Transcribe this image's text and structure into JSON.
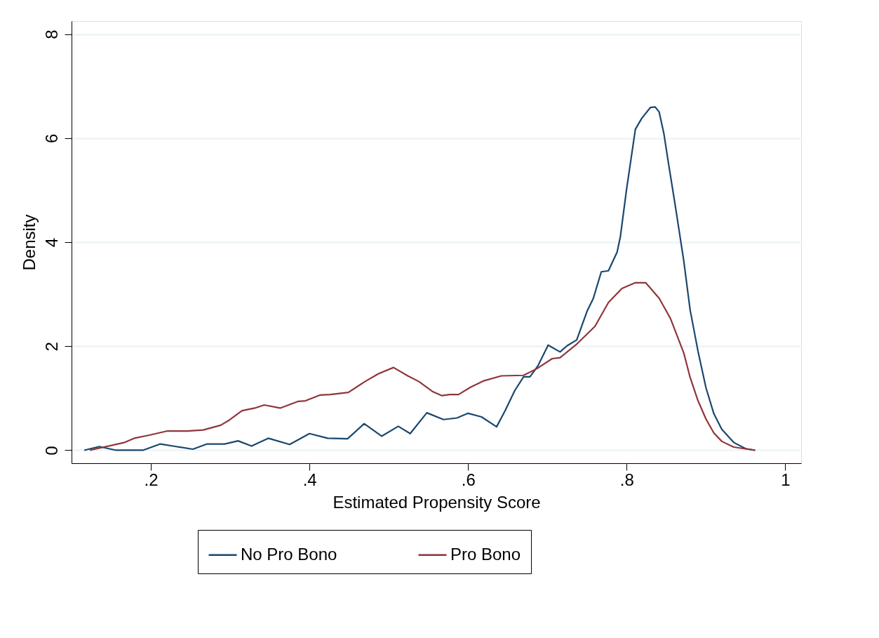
{
  "chart_data": {
    "type": "line",
    "xlabel": "Estimated Propensity Score",
    "ylabel": "Density",
    "xlim": [
      0.1,
      1.02
    ],
    "ylim": [
      -0.25,
      8.25
    ],
    "xticks": [
      {
        "value": 0.2,
        "label": ".2"
      },
      {
        "value": 0.4,
        "label": ".4"
      },
      {
        "value": 0.6,
        "label": ".6"
      },
      {
        "value": 0.8,
        "label": ".8"
      },
      1
    ],
    "yticks": [
      0,
      2,
      4,
      6,
      8
    ],
    "grid": "y",
    "legend": "bottom",
    "line_style": "solid",
    "marker": "none",
    "series": [
      {
        "name": "No Pro Bono",
        "color": "#1a476f",
        "x": [
          0.116,
          0.135,
          0.156,
          0.19,
          0.212,
          0.232,
          0.253,
          0.271,
          0.293,
          0.31,
          0.327,
          0.348,
          0.375,
          0.4,
          0.423,
          0.448,
          0.469,
          0.491,
          0.512,
          0.527,
          0.548,
          0.569,
          0.586,
          0.6,
          0.617,
          0.636,
          0.647,
          0.659,
          0.67,
          0.678,
          0.688,
          0.701,
          0.716,
          0.725,
          0.737,
          0.75,
          0.758,
          0.768,
          0.777,
          0.788,
          0.792,
          0.8,
          0.811,
          0.819,
          0.83,
          0.836,
          0.841,
          0.847,
          0.853,
          0.861,
          0.872,
          0.88,
          0.89,
          0.9,
          0.91,
          0.92,
          0.935,
          0.95,
          0.962
        ],
        "values": [
          0.0,
          0.07,
          0.0,
          0.0,
          0.12,
          0.07,
          0.02,
          0.12,
          0.12,
          0.18,
          0.08,
          0.23,
          0.11,
          0.32,
          0.23,
          0.22,
          0.51,
          0.27,
          0.46,
          0.32,
          0.72,
          0.59,
          0.62,
          0.71,
          0.64,
          0.45,
          0.77,
          1.15,
          1.41,
          1.41,
          1.62,
          2.02,
          1.89,
          2.01,
          2.12,
          2.67,
          2.92,
          3.43,
          3.45,
          3.81,
          4.1,
          5.03,
          6.17,
          6.38,
          6.59,
          6.6,
          6.5,
          6.08,
          5.49,
          4.73,
          3.64,
          2.7,
          1.9,
          1.2,
          0.7,
          0.4,
          0.15,
          0.03,
          0.0
        ]
      },
      {
        "name": "Pro Bono",
        "color": "#90353b",
        "x": [
          0.123,
          0.167,
          0.179,
          0.198,
          0.221,
          0.246,
          0.266,
          0.288,
          0.299,
          0.315,
          0.331,
          0.343,
          0.363,
          0.386,
          0.395,
          0.413,
          0.426,
          0.449,
          0.47,
          0.487,
          0.506,
          0.524,
          0.538,
          0.555,
          0.567,
          0.577,
          0.588,
          0.603,
          0.619,
          0.642,
          0.67,
          0.687,
          0.706,
          0.716,
          0.737,
          0.76,
          0.777,
          0.794,
          0.811,
          0.824,
          0.841,
          0.855,
          0.872,
          0.88,
          0.89,
          0.9,
          0.91,
          0.92,
          0.935,
          0.962
        ],
        "values": [
          0.0,
          0.15,
          0.23,
          0.29,
          0.37,
          0.37,
          0.39,
          0.48,
          0.58,
          0.76,
          0.81,
          0.87,
          0.81,
          0.94,
          0.95,
          1.06,
          1.07,
          1.11,
          1.32,
          1.47,
          1.59,
          1.43,
          1.32,
          1.13,
          1.05,
          1.07,
          1.07,
          1.21,
          1.33,
          1.43,
          1.44,
          1.57,
          1.76,
          1.78,
          2.04,
          2.38,
          2.84,
          3.11,
          3.22,
          3.22,
          2.92,
          2.54,
          1.87,
          1.4,
          0.95,
          0.6,
          0.33,
          0.17,
          0.06,
          0.0
        ]
      }
    ]
  }
}
